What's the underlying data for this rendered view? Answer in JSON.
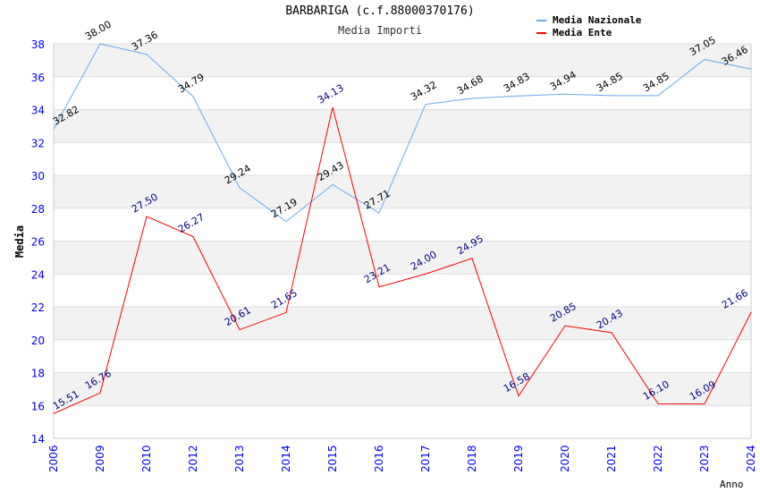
{
  "chart_data": {
    "type": "line",
    "title": "BARBARIGA (c.f.88000370176)",
    "subtitle": "Media Importi",
    "xlabel": "Anno",
    "ylabel": "Media",
    "ylim": [
      14,
      38
    ],
    "yticks": [
      "14",
      "16",
      "18",
      "20",
      "22",
      "24",
      "26",
      "28",
      "30",
      "32",
      "34",
      "36",
      "38"
    ],
    "categories": [
      "2006",
      "2009",
      "2010",
      "2012",
      "2013",
      "2014",
      "2015",
      "2016",
      "2017",
      "2018",
      "2019",
      "2020",
      "2021",
      "2022",
      "2023",
      "2024"
    ],
    "legend_position": "top-right",
    "series": [
      {
        "name": "Media Nazionale",
        "color": "#6aaaee",
        "label_color": "#000000",
        "values": [
          32.82,
          38.0,
          37.36,
          34.79,
          29.24,
          27.19,
          29.43,
          27.71,
          34.32,
          34.68,
          34.83,
          34.94,
          34.85,
          34.85,
          37.05,
          36.46
        ],
        "labels": [
          "32.82",
          "38.00",
          "37.36",
          "34.79",
          "29.24",
          "27.19",
          "29.43",
          "27.71",
          "34.32",
          "34.68",
          "34.83",
          "34.94",
          "34.85",
          "34.85",
          "37.05",
          "36.46"
        ]
      },
      {
        "name": "Media Ente",
        "color": "#ff0000",
        "label_color": "#000080",
        "values": [
          15.51,
          16.76,
          27.5,
          26.27,
          20.61,
          21.65,
          34.13,
          23.21,
          24.0,
          24.95,
          16.58,
          20.85,
          20.43,
          16.1,
          16.09,
          21.66
        ],
        "labels": [
          "15.51",
          "16.76",
          "27.50",
          "26.27",
          "20.61",
          "21.65",
          "34.13",
          "23.21",
          "24.00",
          "24.95",
          "16.58",
          "20.85",
          "20.43",
          "16.10",
          "16.09",
          "21.66"
        ]
      }
    ]
  }
}
